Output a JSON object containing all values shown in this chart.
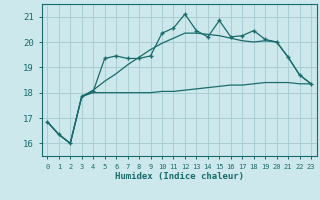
{
  "xlabel": "Humidex (Indice chaleur)",
  "background_color": "#cce8ec",
  "grid_color": "#aacdd4",
  "line_color": "#1a6b6b",
  "xlim": [
    -0.5,
    23.5
  ],
  "ylim": [
    15.5,
    21.5
  ],
  "yticks": [
    16,
    17,
    18,
    19,
    20,
    21
  ],
  "xticks": [
    0,
    1,
    2,
    3,
    4,
    5,
    6,
    7,
    8,
    9,
    10,
    11,
    12,
    13,
    14,
    15,
    16,
    17,
    18,
    19,
    20,
    21,
    22,
    23
  ],
  "line1_x": [
    0,
    1,
    2,
    3,
    4,
    5,
    6,
    7,
    8,
    9,
    10,
    11,
    12,
    13,
    14,
    15,
    16,
    17,
    18,
    19,
    20,
    21,
    22,
    23
  ],
  "line1_y": [
    16.85,
    16.35,
    16.0,
    17.85,
    18.05,
    19.35,
    19.45,
    19.35,
    19.35,
    19.45,
    20.35,
    20.55,
    21.1,
    20.45,
    20.2,
    20.85,
    20.2,
    20.25,
    20.45,
    20.1,
    20.0,
    19.4,
    18.7,
    18.35
  ],
  "line2_x": [
    0,
    1,
    2,
    3,
    4,
    5,
    6,
    7,
    8,
    9,
    10,
    11,
    12,
    13,
    14,
    15,
    16,
    17,
    18,
    19,
    20,
    21,
    22,
    23
  ],
  "line2_y": [
    16.85,
    16.35,
    16.0,
    17.85,
    18.0,
    18.0,
    18.0,
    18.0,
    18.0,
    18.0,
    18.05,
    18.05,
    18.1,
    18.15,
    18.2,
    18.25,
    18.3,
    18.3,
    18.35,
    18.4,
    18.4,
    18.4,
    18.35,
    18.35
  ],
  "line3_x": [
    0,
    1,
    2,
    3,
    4,
    5,
    6,
    7,
    8,
    9,
    10,
    11,
    12,
    13,
    14,
    15,
    16,
    17,
    18,
    19,
    20,
    21,
    22,
    23
  ],
  "line3_y": [
    16.85,
    16.35,
    16.0,
    17.85,
    18.1,
    18.45,
    18.75,
    19.1,
    19.4,
    19.7,
    19.95,
    20.15,
    20.35,
    20.35,
    20.3,
    20.25,
    20.15,
    20.05,
    20.0,
    20.05,
    20.0,
    19.4,
    18.7,
    18.35
  ]
}
